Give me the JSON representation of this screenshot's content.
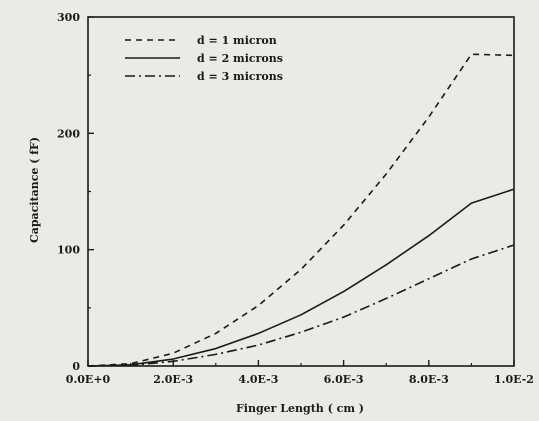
{
  "chart_data": {
    "type": "line",
    "xlabel": "Finger Length  ( cm )",
    "ylabel": "Capacitance ( fF)",
    "xlim": [
      0,
      0.01
    ],
    "ylim": [
      0,
      300
    ],
    "x_ticks": [
      {
        "value": 0,
        "label": "0.0E+0"
      },
      {
        "value": 0.002,
        "label": "2.0E-3"
      },
      {
        "value": 0.004,
        "label": "4.0E-3"
      },
      {
        "value": 0.006,
        "label": "6.0E-3"
      },
      {
        "value": 0.008,
        "label": "8.0E-3"
      },
      {
        "value": 0.01,
        "label": "1.0E-2"
      }
    ],
    "y_ticks": [
      {
        "value": 0,
        "label": "0"
      },
      {
        "value": 100,
        "label": "100"
      },
      {
        "value": 200,
        "label": "200"
      },
      {
        "value": 300,
        "label": "300"
      }
    ],
    "grid": false,
    "legend_position": "top-left",
    "x": [
      0,
      0.001,
      0.002,
      0.003,
      0.004,
      0.005,
      0.006,
      0.007,
      0.008,
      0.009,
      0.01
    ],
    "series": [
      {
        "name": "d = 1 micron",
        "style": "dashed",
        "color": "#1a1a1a",
        "values": [
          0,
          2,
          11,
          28,
          52,
          83,
          121,
          165,
          214,
          268,
          267
        ]
      },
      {
        "name": "d = 2 microns",
        "style": "solid",
        "color": "#1a1a1a",
        "values": [
          0,
          1,
          6,
          15,
          28,
          44,
          64,
          87,
          112,
          140,
          152
        ]
      },
      {
        "name": "d = 3 microns",
        "style": "dashdot",
        "color": "#1a1a1a",
        "values": [
          0,
          0.5,
          4,
          10,
          18,
          29,
          42,
          58,
          75,
          92,
          104
        ]
      }
    ]
  }
}
